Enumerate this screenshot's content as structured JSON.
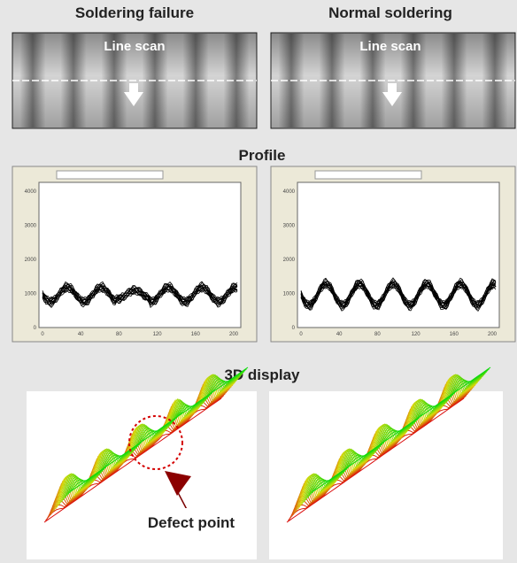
{
  "panels": {
    "left_title": "Soldering failure",
    "right_title": "Normal soldering",
    "line_scan_left": "Line scan",
    "line_scan_right": "Line scan"
  },
  "profile": {
    "title": "Profile",
    "yticks": [
      "4000",
      "3000",
      "2000",
      "1000",
      "0"
    ],
    "xticks": [
      "0",
      "40",
      "80",
      "120",
      "160",
      "200"
    ]
  },
  "display3d": {
    "title": "3D display",
    "annotation": "Defect point"
  }
}
